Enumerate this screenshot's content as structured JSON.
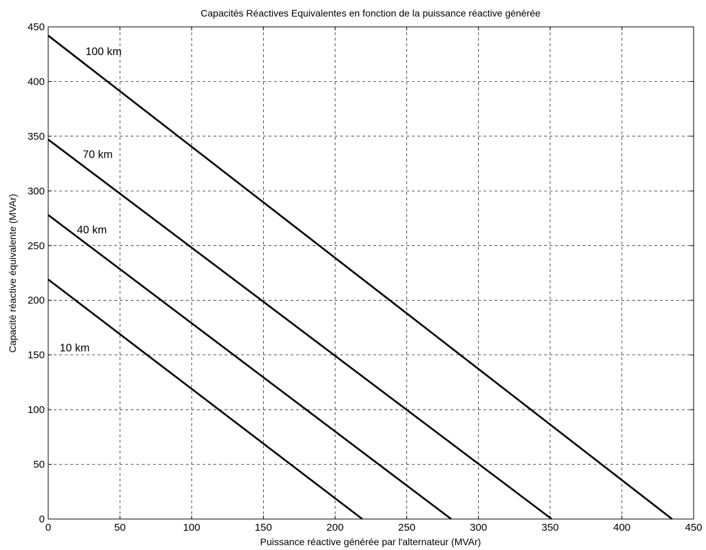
{
  "chart_data": {
    "type": "line",
    "title": "Capacités Réactives Equivalentes en fonction de la puissance réactive générée",
    "xlabel": "Puissance réactive générée par l'alternateur (MVAr)",
    "ylabel": "Capacité réactive équivalente (MVAr)",
    "xlim": [
      0,
      450
    ],
    "ylim": [
      0,
      450
    ],
    "xticks": [
      "0",
      "50",
      "100",
      "150",
      "200",
      "250",
      "300",
      "350",
      "400",
      "450"
    ],
    "yticks": [
      "0",
      "50",
      "100",
      "150",
      "200",
      "250",
      "300",
      "350",
      "400",
      "450"
    ],
    "grid": true,
    "legend": "none",
    "series_color": "#000000",
    "series": [
      {
        "name": "10 km",
        "x": [
          0,
          219
        ],
        "y": [
          219,
          0
        ]
      },
      {
        "name": "40 km",
        "x": [
          0,
          281
        ],
        "y": [
          278,
          0
        ]
      },
      {
        "name": "70 km",
        "x": [
          0,
          351
        ],
        "y": [
          347,
          0
        ]
      },
      {
        "name": "100 km",
        "x": [
          0,
          435
        ],
        "y": [
          442,
          0
        ]
      }
    ],
    "annotations": [
      {
        "text": "100 km",
        "x": 26,
        "y": 428,
        "series": "100 km"
      },
      {
        "text": "70 km",
        "x": 24,
        "y": 334,
        "series": "70 km"
      },
      {
        "text": "40 km",
        "x": 20,
        "y": 265,
        "series": "40 km"
      },
      {
        "text": "10 km",
        "x": 8,
        "y": 157,
        "series": "10 km"
      }
    ]
  }
}
